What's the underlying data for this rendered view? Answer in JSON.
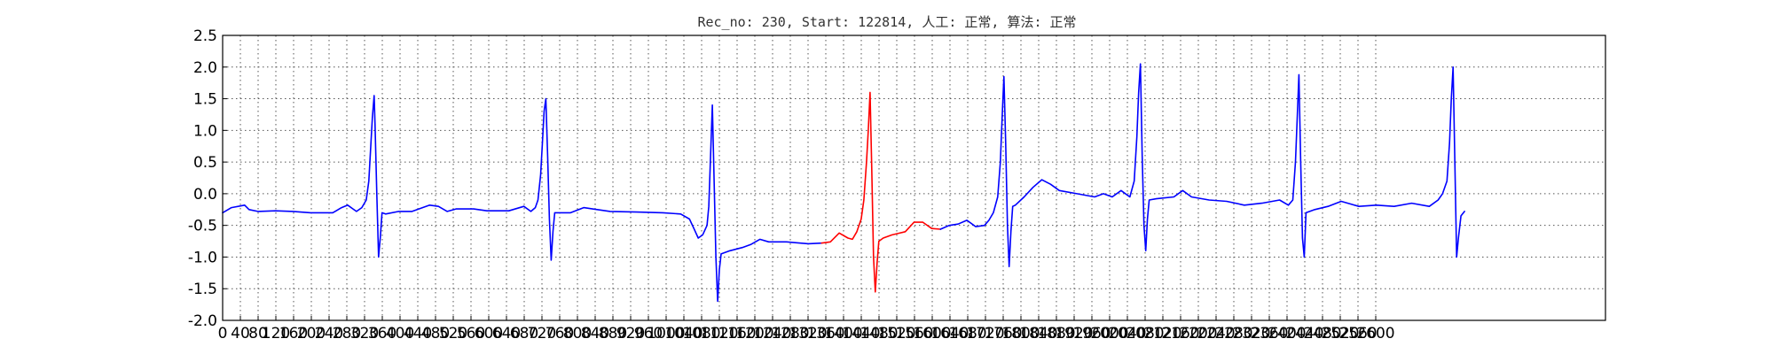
{
  "chart_data": {
    "type": "line",
    "title": "Rec_no: 230, Start: 122814, 人工: 正常, 算法: 正常",
    "xlabel": "",
    "ylabel": "",
    "xlim": [
      0,
      1570
    ],
    "ylim": [
      -2.0,
      2.5
    ],
    "grid": true,
    "y_ticks": [
      "-2.0",
      "-1.5",
      "-1.0",
      "-0.5",
      "0.0",
      "0.5",
      "1.0",
      "1.5",
      "2.0",
      "2.5"
    ],
    "x_ticks": [
      "0",
      "40",
      "80",
      "120",
      "160",
      "200",
      "240",
      "280",
      "320",
      "360",
      "400",
      "440",
      "480",
      "520",
      "560",
      "600",
      "640",
      "680",
      "720",
      "760",
      "800",
      "840",
      "880",
      "920",
      "960",
      "1000",
      "1040",
      "1080",
      "1120",
      "1160",
      "1200",
      "1240",
      "1280",
      "1320",
      "1360",
      "1400",
      "1440",
      "1480",
      "1520",
      "1560",
      "1600",
      "1640",
      "1680",
      "1720",
      "1760",
      "1800",
      "1840",
      "1880",
      "1920",
      "1960",
      "2000",
      "2040",
      "2080",
      "2120",
      "2160",
      "2200",
      "2240",
      "2280",
      "2320",
      "2360",
      "2400",
      "2440",
      "2480",
      "2520",
      "2560",
      "2600"
    ],
    "colors": {
      "normal": "#0000ff",
      "highlighted": "#ff0000"
    },
    "series": [
      {
        "color": "#0000ff",
        "points": [
          [
            0,
            -0.3
          ],
          [
            10,
            -0.22
          ],
          [
            25,
            -0.18
          ],
          [
            30,
            -0.25
          ],
          [
            40,
            -0.28
          ],
          [
            60,
            -0.27
          ],
          [
            80,
            -0.28
          ],
          [
            100,
            -0.3
          ],
          [
            125,
            -0.3
          ],
          [
            135,
            -0.22
          ],
          [
            142,
            -0.18
          ],
          [
            148,
            -0.24
          ],
          [
            152,
            -0.28
          ],
          [
            158,
            -0.22
          ],
          [
            163,
            -0.1
          ],
          [
            166,
            0.2
          ],
          [
            168,
            0.7
          ],
          [
            170,
            1.2
          ],
          [
            172,
            1.55
          ],
          [
            173,
            1.1
          ],
          [
            175,
            0.0
          ],
          [
            177,
            -1.0
          ],
          [
            179,
            -0.7
          ],
          [
            181,
            -0.3
          ],
          [
            185,
            -0.32
          ],
          [
            200,
            -0.28
          ],
          [
            215,
            -0.28
          ],
          [
            235,
            -0.18
          ],
          [
            245,
            -0.2
          ],
          [
            255,
            -0.28
          ],
          [
            265,
            -0.24
          ],
          [
            285,
            -0.24
          ],
          [
            300,
            -0.27
          ],
          [
            325,
            -0.27
          ],
          [
            342,
            -0.2
          ],
          [
            350,
            -0.28
          ],
          [
            355,
            -0.22
          ],
          [
            358,
            -0.1
          ],
          [
            361,
            0.3
          ],
          [
            363,
            0.8
          ],
          [
            365,
            1.3
          ],
          [
            367,
            1.5
          ],
          [
            369,
            0.6
          ],
          [
            371,
            -0.4
          ],
          [
            373,
            -1.05
          ],
          [
            375,
            -0.6
          ],
          [
            377,
            -0.3
          ],
          [
            385,
            -0.3
          ],
          [
            395,
            -0.3
          ],
          [
            410,
            -0.22
          ],
          [
            420,
            -0.24
          ],
          [
            440,
            -0.28
          ],
          [
            470,
            -0.29
          ],
          [
            500,
            -0.3
          ],
          [
            520,
            -0.32
          ],
          [
            530,
            -0.4
          ],
          [
            535,
            -0.55
          ],
          [
            540,
            -0.7
          ],
          [
            545,
            -0.65
          ],
          [
            550,
            -0.5
          ],
          [
            552,
            -0.2
          ],
          [
            554,
            0.6
          ],
          [
            556,
            1.4
          ],
          [
            558,
            0.2
          ],
          [
            560,
            -1.0
          ],
          [
            562,
            -1.7
          ],
          [
            564,
            -1.2
          ],
          [
            566,
            -0.95
          ],
          [
            576,
            -0.9
          ],
          [
            590,
            -0.85
          ],
          [
            600,
            -0.8
          ],
          [
            610,
            -0.72
          ],
          [
            620,
            -0.76
          ],
          [
            640,
            -0.76
          ],
          [
            665,
            -0.79
          ],
          [
            680,
            -0.78
          ]
        ]
      },
      {
        "color": "#ff0000",
        "points": [
          [
            680,
            -0.78
          ],
          [
            690,
            -0.76
          ],
          [
            700,
            -0.62
          ],
          [
            710,
            -0.7
          ],
          [
            715,
            -0.72
          ],
          [
            720,
            -0.6
          ],
          [
            725,
            -0.4
          ],
          [
            728,
            -0.1
          ],
          [
            731,
            0.5
          ],
          [
            733,
            1.0
          ],
          [
            735,
            1.6
          ],
          [
            737,
            0.4
          ],
          [
            739,
            -1.0
          ],
          [
            741,
            -1.55
          ],
          [
            743,
            -1.1
          ],
          [
            745,
            -0.75
          ],
          [
            750,
            -0.7
          ],
          [
            760,
            -0.65
          ],
          [
            775,
            -0.6
          ],
          [
            785,
            -0.45
          ],
          [
            795,
            -0.45
          ],
          [
            805,
            -0.55
          ],
          [
            815,
            -0.56
          ]
        ]
      },
      {
        "color": "#0000ff",
        "points": [
          [
            815,
            -0.56
          ],
          [
            825,
            -0.5
          ],
          [
            835,
            -0.48
          ],
          [
            845,
            -0.42
          ],
          [
            855,
            -0.52
          ],
          [
            865,
            -0.5
          ],
          [
            870,
            -0.42
          ],
          [
            875,
            -0.3
          ],
          [
            880,
            -0.05
          ],
          [
            883,
            0.5
          ],
          [
            885,
            1.2
          ],
          [
            887,
            1.85
          ],
          [
            889,
            0.8
          ],
          [
            891,
            -0.5
          ],
          [
            893,
            -1.15
          ],
          [
            895,
            -0.6
          ],
          [
            897,
            -0.2
          ],
          [
            900,
            -0.18
          ],
          [
            910,
            -0.05
          ],
          [
            920,
            0.1
          ],
          [
            930,
            0.22
          ],
          [
            940,
            0.15
          ],
          [
            950,
            0.05
          ],
          [
            970,
            0.0
          ],
          [
            990,
            -0.05
          ],
          [
            1000,
            0.0
          ],
          [
            1010,
            -0.05
          ],
          [
            1020,
            0.05
          ],
          [
            1030,
            -0.05
          ],
          [
            1035,
            0.2
          ],
          [
            1038,
            0.9
          ],
          [
            1040,
            1.6
          ],
          [
            1042,
            2.05
          ],
          [
            1044,
            0.6
          ],
          [
            1046,
            -0.5
          ],
          [
            1048,
            -0.9
          ],
          [
            1050,
            -0.4
          ],
          [
            1052,
            -0.1
          ],
          [
            1060,
            -0.08
          ],
          [
            1080,
            -0.05
          ],
          [
            1090,
            0.05
          ],
          [
            1100,
            -0.05
          ],
          [
            1120,
            -0.1
          ],
          [
            1140,
            -0.12
          ],
          [
            1160,
            -0.18
          ],
          [
            1180,
            -0.15
          ],
          [
            1200,
            -0.1
          ],
          [
            1210,
            -0.18
          ],
          [
            1215,
            -0.1
          ],
          [
            1218,
            0.5
          ],
          [
            1220,
            1.2
          ],
          [
            1222,
            1.88
          ],
          [
            1224,
            0.5
          ],
          [
            1226,
            -0.7
          ],
          [
            1228,
            -1.0
          ],
          [
            1230,
            -0.3
          ],
          [
            1240,
            -0.25
          ],
          [
            1255,
            -0.2
          ],
          [
            1270,
            -0.12
          ],
          [
            1290,
            -0.2
          ],
          [
            1310,
            -0.18
          ],
          [
            1330,
            -0.2
          ],
          [
            1350,
            -0.15
          ],
          [
            1370,
            -0.2
          ],
          [
            1380,
            -0.1
          ],
          [
            1385,
            0.0
          ],
          [
            1390,
            0.2
          ],
          [
            1393,
            0.8
          ],
          [
            1395,
            1.5
          ],
          [
            1397,
            2.0
          ],
          [
            1399,
            0.5
          ],
          [
            1401,
            -1.0
          ],
          [
            1403,
            -0.7
          ],
          [
            1406,
            -0.35
          ],
          [
            1410,
            -0.28
          ]
        ]
      }
    ]
  }
}
